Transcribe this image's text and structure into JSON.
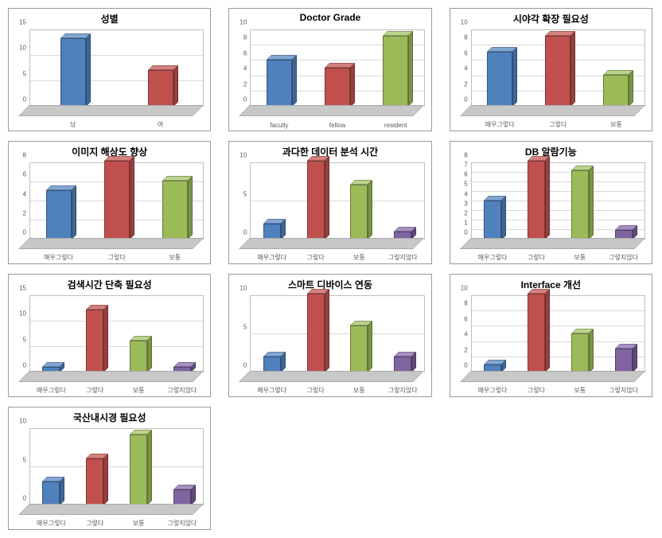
{
  "layout": {
    "columns": 3,
    "panel_border_color": "#9a9a9a",
    "grid_color": "#d9d9d9",
    "floor_color": "#c8c8c8",
    "background_color": "#ffffff",
    "title_fontsize": 12,
    "tick_fontsize": 8,
    "colors": {
      "blue": {
        "front": "#4f81bd",
        "top": "#82a6d4",
        "side": "#3e6797"
      },
      "red": {
        "front": "#c0504d",
        "top": "#d6807e",
        "side": "#96403e"
      },
      "green": {
        "front": "#9bbb59",
        "top": "#bbd28a",
        "side": "#7a9446"
      },
      "purple": {
        "front": "#8064a2",
        "top": "#a68fc2",
        "side": "#5f4b78"
      }
    }
  },
  "charts": [
    {
      "id": "gender",
      "title": "성별",
      "ymax": 15,
      "ystep": 5,
      "bar_width": "wide",
      "categories": [
        "남",
        "여"
      ],
      "values": [
        13,
        7
      ],
      "colors": [
        "blue",
        "red"
      ]
    },
    {
      "id": "doctor-grade",
      "title": "Doctor Grade",
      "ymax": 10,
      "ystep": 2,
      "bar_width": "wide",
      "categories": [
        "faculty",
        "fellow",
        "resident"
      ],
      "values": [
        6,
        5,
        9
      ],
      "colors": [
        "blue",
        "red",
        "green"
      ]
    },
    {
      "id": "fov-need",
      "title": "시야각 확장 필요성",
      "ymax": 10,
      "ystep": 2,
      "bar_width": "wide",
      "categories": [
        "매우그렇다",
        "그렇다",
        "보통"
      ],
      "values": [
        7,
        9,
        4
      ],
      "colors": [
        "blue",
        "red",
        "green"
      ]
    },
    {
      "id": "image-res",
      "title": "이미지 해상도 향상",
      "ymax": 8,
      "ystep": 2,
      "bar_width": "wide",
      "categories": [
        "매우그렇다",
        "그렇다",
        "보통"
      ],
      "values": [
        5,
        8,
        6
      ],
      "colors": [
        "blue",
        "red",
        "green"
      ]
    },
    {
      "id": "data-time",
      "title": "과다한 데이터 분석 시간",
      "ymax": 10,
      "ystep": 5,
      "bar_width": "narrow",
      "categories": [
        "매우그렇다",
        "그렇다",
        "보통",
        "그렇지않다"
      ],
      "values": [
        2,
        10,
        7,
        1
      ],
      "colors": [
        "blue",
        "red",
        "green",
        "purple"
      ]
    },
    {
      "id": "db-alarm",
      "title": "DB 알람기능",
      "ymax": 8,
      "ystep": 1,
      "bar_width": "narrow",
      "categories": [
        "매우그렇다",
        "그렇다",
        "보통",
        "그렇지않다"
      ],
      "values": [
        4,
        8,
        7,
        1
      ],
      "colors": [
        "blue",
        "red",
        "green",
        "purple"
      ]
    },
    {
      "id": "search-time",
      "title": "검색시간 단축 필요성",
      "ymax": 15,
      "ystep": 5,
      "bar_width": "narrow",
      "categories": [
        "매우그렇다",
        "그렇다",
        "보통",
        "그렇지않다"
      ],
      "values": [
        1,
        12,
        6,
        1
      ],
      "colors": [
        "blue",
        "red",
        "green",
        "purple"
      ]
    },
    {
      "id": "smart-device",
      "title": "스마트 디바이스 연동",
      "ymax": 10,
      "ystep": 5,
      "bar_width": "narrow",
      "categories": [
        "매우그렇다",
        "그렇다",
        "보통",
        "그렇지않다"
      ],
      "values": [
        2,
        10,
        6,
        2
      ],
      "colors": [
        "blue",
        "red",
        "green",
        "purple"
      ]
    },
    {
      "id": "interface",
      "title": "Interface 개선",
      "ymax": 10,
      "ystep": 2,
      "bar_width": "narrow",
      "categories": [
        "매우그렇다",
        "그렇다",
        "보통",
        "그렇지않다"
      ],
      "values": [
        1,
        10,
        5,
        3
      ],
      "colors": [
        "blue",
        "red",
        "green",
        "purple"
      ]
    },
    {
      "id": "domestic-endo",
      "title": "국산내시경 필요성",
      "ymax": 10,
      "ystep": 5,
      "bar_width": "narrow",
      "categories": [
        "매우그렇다",
        "그렇다",
        "보통",
        "그렇지않다"
      ],
      "values": [
        3,
        6,
        9,
        2
      ],
      "colors": [
        "blue",
        "red",
        "green",
        "purple"
      ]
    }
  ]
}
